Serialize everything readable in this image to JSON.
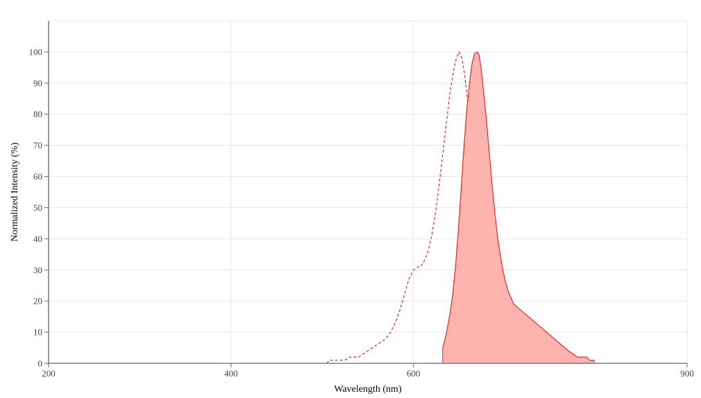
{
  "chart_data": {
    "type": "line",
    "xlabel": "Wavelength (nm)",
    "ylabel": "Normalized Intensity (%)",
    "xlim": [
      200,
      900
    ],
    "ylim": [
      0,
      110
    ],
    "x_ticks": [
      200,
      400,
      600,
      900
    ],
    "y_ticks": [
      0,
      10,
      20,
      30,
      40,
      50,
      60,
      70,
      80,
      90,
      100
    ],
    "grid": true,
    "legend": "none",
    "series": [
      {
        "style": "dashed",
        "color": "#e8291c",
        "filled": false,
        "points": [
          [
            505,
            0
          ],
          [
            508,
            1
          ],
          [
            525,
            1
          ],
          [
            530,
            2
          ],
          [
            540,
            2
          ],
          [
            545,
            3
          ],
          [
            550,
            4
          ],
          [
            555,
            5
          ],
          [
            560,
            6
          ],
          [
            565,
            7
          ],
          [
            570,
            8
          ],
          [
            575,
            10
          ],
          [
            580,
            13
          ],
          [
            585,
            17
          ],
          [
            590,
            22
          ],
          [
            595,
            27
          ],
          [
            600,
            30
          ],
          [
            605,
            31
          ],
          [
            608,
            31
          ],
          [
            612,
            33
          ],
          [
            616,
            36
          ],
          [
            620,
            41
          ],
          [
            624,
            48
          ],
          [
            628,
            57
          ],
          [
            632,
            67
          ],
          [
            636,
            77
          ],
          [
            640,
            87
          ],
          [
            644,
            94
          ],
          [
            647,
            98
          ],
          [
            650,
            100
          ],
          [
            653,
            98
          ],
          [
            656,
            93
          ],
          [
            659,
            85
          ],
          [
            662,
            75
          ],
          [
            665,
            64
          ],
          [
            668,
            52
          ],
          [
            671,
            41
          ],
          [
            674,
            31
          ],
          [
            677,
            22
          ],
          [
            680,
            15
          ],
          [
            683,
            9
          ],
          [
            686,
            5
          ],
          [
            690,
            3
          ],
          [
            695,
            1
          ],
          [
            698,
            0
          ]
        ]
      },
      {
        "style": "solid",
        "color": "#e8291c",
        "fill_color": "#fdb3ae",
        "filled": true,
        "points": [
          [
            632,
            5
          ],
          [
            634,
            7
          ],
          [
            637,
            11
          ],
          [
            640,
            16
          ],
          [
            643,
            22
          ],
          [
            646,
            31
          ],
          [
            649,
            42
          ],
          [
            652,
            55
          ],
          [
            655,
            68
          ],
          [
            658,
            80
          ],
          [
            661,
            89
          ],
          [
            664,
            96
          ],
          [
            667,
            99.5
          ],
          [
            670,
            100
          ],
          [
            672,
            99
          ],
          [
            674,
            95
          ],
          [
            677,
            87
          ],
          [
            680,
            78
          ],
          [
            683,
            68
          ],
          [
            686,
            58
          ],
          [
            689,
            49
          ],
          [
            692,
            41
          ],
          [
            695,
            35
          ],
          [
            698,
            30
          ],
          [
            701,
            26
          ],
          [
            704,
            23
          ],
          [
            707,
            21
          ],
          [
            710,
            19
          ],
          [
            714,
            18
          ],
          [
            718,
            17
          ],
          [
            722,
            16
          ],
          [
            726,
            15
          ],
          [
            730,
            14
          ],
          [
            734,
            13
          ],
          [
            738,
            12
          ],
          [
            742,
            11
          ],
          [
            746,
            10
          ],
          [
            750,
            9
          ],
          [
            754,
            8
          ],
          [
            758,
            7
          ],
          [
            762,
            6
          ],
          [
            766,
            5
          ],
          [
            770,
            4
          ],
          [
            775,
            3
          ],
          [
            780,
            2
          ],
          [
            785,
            2
          ],
          [
            790,
            2
          ],
          [
            793,
            1
          ],
          [
            798,
            1
          ],
          [
            798,
            0
          ]
        ]
      }
    ]
  }
}
